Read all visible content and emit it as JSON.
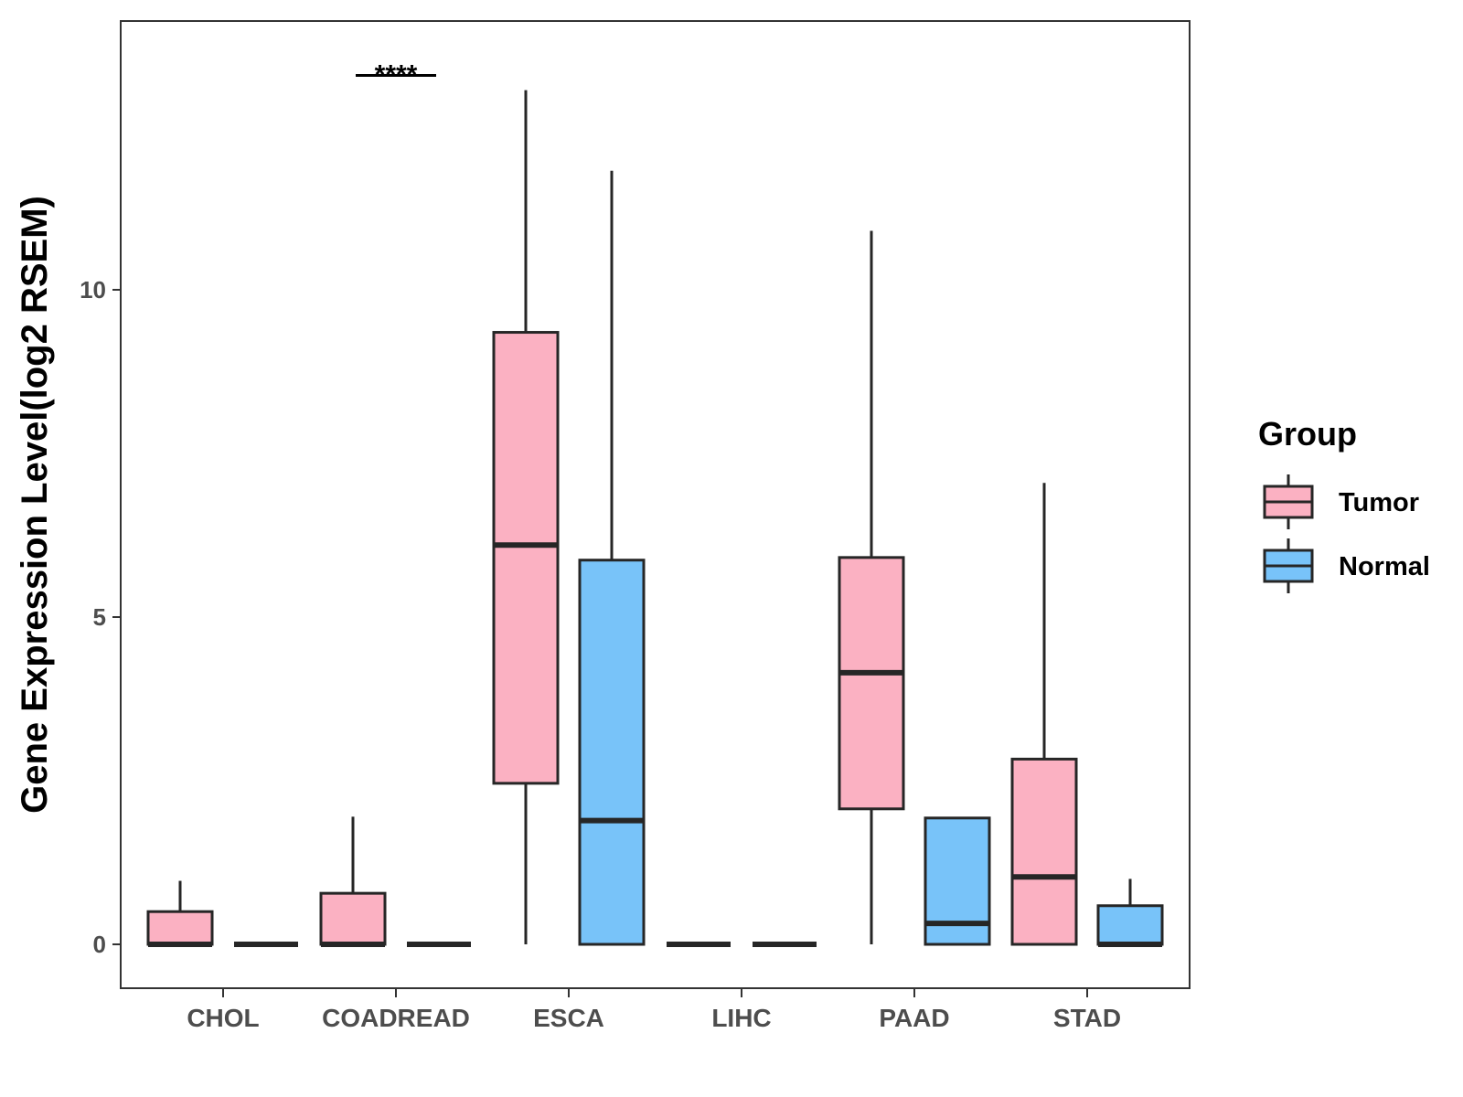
{
  "chart_data": {
    "type": "boxplot",
    "title": "",
    "xlabel": "",
    "ylabel": "Gene Expression Level(log2 RSEM)",
    "ylim": [
      -0.66,
      14.1
    ],
    "yticks": [
      0,
      5,
      10
    ],
    "ytick_labels": [
      "0",
      "5",
      "10"
    ],
    "categories": [
      "CHOL",
      "COADREAD",
      "ESCA",
      "LIHC",
      "PAAD",
      "STAD"
    ],
    "legend": {
      "title": "Group",
      "position": "right",
      "entries": [
        {
          "name": "Tumor",
          "color": "#fbb1c2"
        },
        {
          "name": "Normal",
          "color": "#78c3f9"
        }
      ]
    },
    "series": [
      {
        "name": "Tumor",
        "color": "#fbb1c2",
        "boxes": [
          {
            "category": "CHOL",
            "whisker_low": 0,
            "q1": 0,
            "median": 0,
            "q3": 0.5,
            "whisker_high": 0.97
          },
          {
            "category": "COADREAD",
            "whisker_low": 0,
            "q1": 0,
            "median": 0,
            "q3": 0.78,
            "whisker_high": 1.95
          },
          {
            "category": "ESCA",
            "whisker_low": 0,
            "q1": 2.46,
            "median": 6.1,
            "q3": 9.35,
            "whisker_high": 13.05
          },
          {
            "category": "LIHC",
            "whisker_low": 0,
            "q1": 0,
            "median": 0,
            "q3": 0,
            "whisker_high": 0
          },
          {
            "category": "PAAD",
            "whisker_low": 0,
            "q1": 2.07,
            "median": 4.15,
            "q3": 5.91,
            "whisker_high": 10.9
          },
          {
            "category": "STAD",
            "whisker_low": 0,
            "q1": 0,
            "median": 1.03,
            "q3": 2.83,
            "whisker_high": 7.05
          }
        ]
      },
      {
        "name": "Normal",
        "color": "#78c3f9",
        "boxes": [
          {
            "category": "CHOL",
            "whisker_low": 0,
            "q1": 0,
            "median": 0,
            "q3": 0,
            "whisker_high": 0
          },
          {
            "category": "COADREAD",
            "whisker_low": 0,
            "q1": 0,
            "median": 0,
            "q3": 0,
            "whisker_high": 0
          },
          {
            "category": "ESCA",
            "whisker_low": 0,
            "q1": 0,
            "median": 1.89,
            "q3": 5.87,
            "whisker_high": 11.82
          },
          {
            "category": "LIHC",
            "whisker_low": 0,
            "q1": 0,
            "median": 0,
            "q3": 0,
            "whisker_high": 0
          },
          {
            "category": "PAAD",
            "whisker_low": 0,
            "q1": 0,
            "median": 0.32,
            "q3": 1.93,
            "whisker_high": 1.93
          },
          {
            "category": "STAD",
            "whisker_low": 0,
            "q1": 0,
            "median": 0,
            "q3": 0.59,
            "whisker_high": 1.0
          }
        ]
      }
    ],
    "annotations": [
      {
        "category": "COADREAD",
        "text": "****",
        "y": 13.4
      }
    ],
    "grid": false
  }
}
